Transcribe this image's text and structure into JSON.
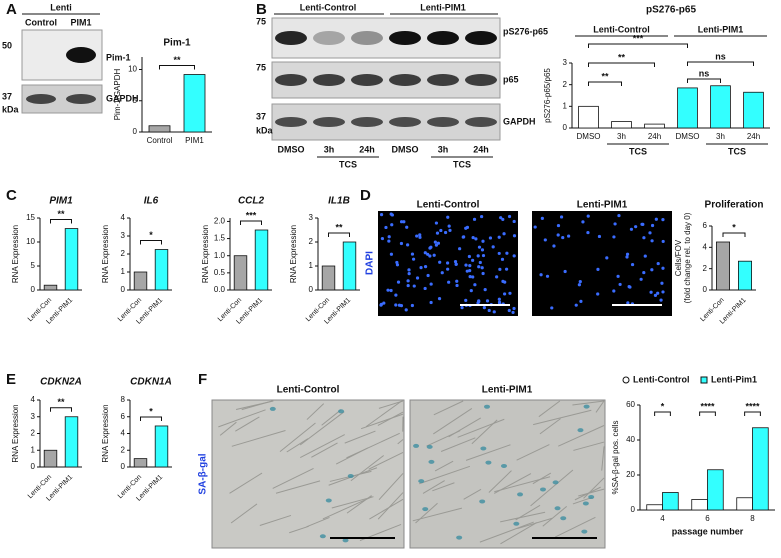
{
  "figure": {
    "panels": [
      "A",
      "B",
      "C",
      "D",
      "E",
      "F"
    ],
    "blot_a": {
      "header": "Lenti",
      "lanes": [
        "Control",
        "PIM1"
      ],
      "bands": [
        "Pim-1",
        "GAPDH"
      ],
      "markers": [
        "50",
        "37"
      ],
      "unit": "kDa"
    },
    "blot_b": {
      "groups": [
        "Lenti-Control",
        "Lenti-PIM1"
      ],
      "bands": [
        "pS276-p65",
        "p65",
        "GAPDH"
      ],
      "markers": [
        "75",
        "75",
        "37"
      ],
      "unit": "kDa",
      "lanes": [
        "DMSO",
        "3h",
        "24h",
        "DMSO",
        "3h",
        "24h"
      ],
      "treatment": [
        "TCS",
        "TCS"
      ]
    },
    "images_d": {
      "titles": [
        "Lenti-Control",
        "Lenti-PIM1"
      ],
      "stain": "DAPI"
    },
    "images_f": {
      "titles": [
        "Lenti-Control",
        "Lenti-PIM1"
      ],
      "stain": "SA-β-gal"
    }
  },
  "chart_data": [
    {
      "type": "bar",
      "title": "Pim-1",
      "ylabel": "Pim-1/GAPDH",
      "categories": [
        "Control",
        "PIM1"
      ],
      "values": [
        1,
        9.2
      ],
      "colors": [
        "#a6a6a6",
        "#33ffff"
      ],
      "ylim": [
        0,
        12
      ],
      "yticks": [
        0,
        5,
        10
      ],
      "significance": [
        "**"
      ]
    },
    {
      "type": "bar",
      "title": "pS276-p65",
      "ylabel": "pS276-p65/p65",
      "categories": [
        "DMSO",
        "3h",
        "24h",
        "DMSO",
        "3h",
        "24h"
      ],
      "groups": [
        "Lenti-Control",
        "Lenti-PIM1"
      ],
      "group_sublabels": [
        "TCS",
        "TCS"
      ],
      "values": [
        1,
        0.3,
        0.18,
        1.85,
        1.95,
        1.65
      ],
      "colors": [
        "#ffffff",
        "#ffffff",
        "#ffffff",
        "#33ffff",
        "#33ffff",
        "#33ffff"
      ],
      "ylim": [
        0,
        3
      ],
      "yticks": [
        0,
        1,
        2,
        3
      ],
      "significance": [
        "***",
        "**",
        "**",
        "ns",
        "ns"
      ]
    },
    {
      "type": "bar",
      "title": "PIM1",
      "italic_title": true,
      "ylabel": "RNA Expression",
      "categories": [
        "Lenti-Con",
        "Lenti-PIM1"
      ],
      "values": [
        1,
        12.8
      ],
      "colors": [
        "#a6a6a6",
        "#33ffff"
      ],
      "ylim": [
        0,
        15
      ],
      "yticks": [
        0,
        5,
        10,
        15
      ],
      "significance": [
        "**"
      ]
    },
    {
      "type": "bar",
      "title": "IL6",
      "italic_title": true,
      "ylabel": "RNA Expression",
      "categories": [
        "Lenti-Con",
        "Lenti-PIM1"
      ],
      "values": [
        1,
        2.25
      ],
      "colors": [
        "#a6a6a6",
        "#33ffff"
      ],
      "ylim": [
        0,
        4
      ],
      "yticks": [
        0,
        1,
        2,
        3,
        4
      ],
      "significance": [
        "*"
      ]
    },
    {
      "type": "bar",
      "title": "CCL2",
      "italic_title": true,
      "ylabel": "RNA Expression",
      "categories": [
        "Lenti-Con",
        "Lenti-PIM1"
      ],
      "values": [
        1,
        1.75
      ],
      "colors": [
        "#a6a6a6",
        "#33ffff"
      ],
      "ylim": [
        0,
        2.1
      ],
      "yticks": [
        {
          "value": 0,
          "label": "0.0"
        },
        0.5,
        {
          "value": 1,
          "label": "1.0"
        },
        1.5,
        {
          "value": 2,
          "label": "2.0"
        }
      ],
      "significance": [
        "***"
      ]
    },
    {
      "type": "bar",
      "title": "IL1B",
      "italic_title": true,
      "ylabel": "RNA Expression",
      "categories": [
        "Lenti-Con",
        "Lenti-PIM1"
      ],
      "values": [
        1,
        2
      ],
      "colors": [
        "#a6a6a6",
        "#33ffff"
      ],
      "ylim": [
        0,
        3
      ],
      "yticks": [
        0,
        1,
        2,
        3
      ],
      "significance": [
        "**"
      ]
    },
    {
      "type": "bar",
      "title": "Proliferation",
      "ylabel": [
        "Cells/FOV",
        "(fold change rel. to day 0)"
      ],
      "categories": [
        "Lenti-Con",
        "Lenti-PIM1"
      ],
      "values": [
        4.5,
        2.7
      ],
      "colors": [
        "#a6a6a6",
        "#33ffff"
      ],
      "ylim": [
        0,
        6
      ],
      "yticks": [
        0,
        2,
        4,
        6
      ],
      "significance": [
        "*"
      ]
    },
    {
      "type": "bar",
      "title": "CDKN2A",
      "italic_title": true,
      "ylabel": "RNA Expression",
      "categories": [
        "Lenti-Con",
        "Lenti-PIM1"
      ],
      "values": [
        1,
        3
      ],
      "colors": [
        "#a6a6a6",
        "#33ffff"
      ],
      "ylim": [
        0,
        4
      ],
      "yticks": [
        0,
        1,
        2,
        3,
        4
      ],
      "significance": [
        "**"
      ]
    },
    {
      "type": "bar",
      "title": "CDKN1A",
      "italic_title": true,
      "ylabel": "RNA Expression",
      "categories": [
        "Lenti-Con",
        "Lenti-PIM1"
      ],
      "values": [
        1,
        4.9
      ],
      "colors": [
        "#a6a6a6",
        "#33ffff"
      ],
      "ylim": [
        0,
        8
      ],
      "yticks": [
        0,
        2,
        4,
        6,
        8
      ],
      "significance": [
        "*"
      ]
    },
    {
      "type": "bar",
      "ylabel": "%SA-β-gal pos. cells",
      "xlabel": "passage number",
      "categories": [
        "4",
        "6",
        "8"
      ],
      "series": [
        {
          "name": "Lenti-Control",
          "color": "#ffffff",
          "values": [
            3,
            6,
            7
          ]
        },
        {
          "name": "Lenti-Pim1",
          "color": "#33ffff",
          "values": [
            10,
            23,
            47
          ]
        }
      ],
      "ylim": [
        0,
        60
      ],
      "yticks": [
        0,
        20,
        40,
        60
      ],
      "legend": "top",
      "significance": [
        "*",
        "****",
        "****"
      ]
    }
  ]
}
